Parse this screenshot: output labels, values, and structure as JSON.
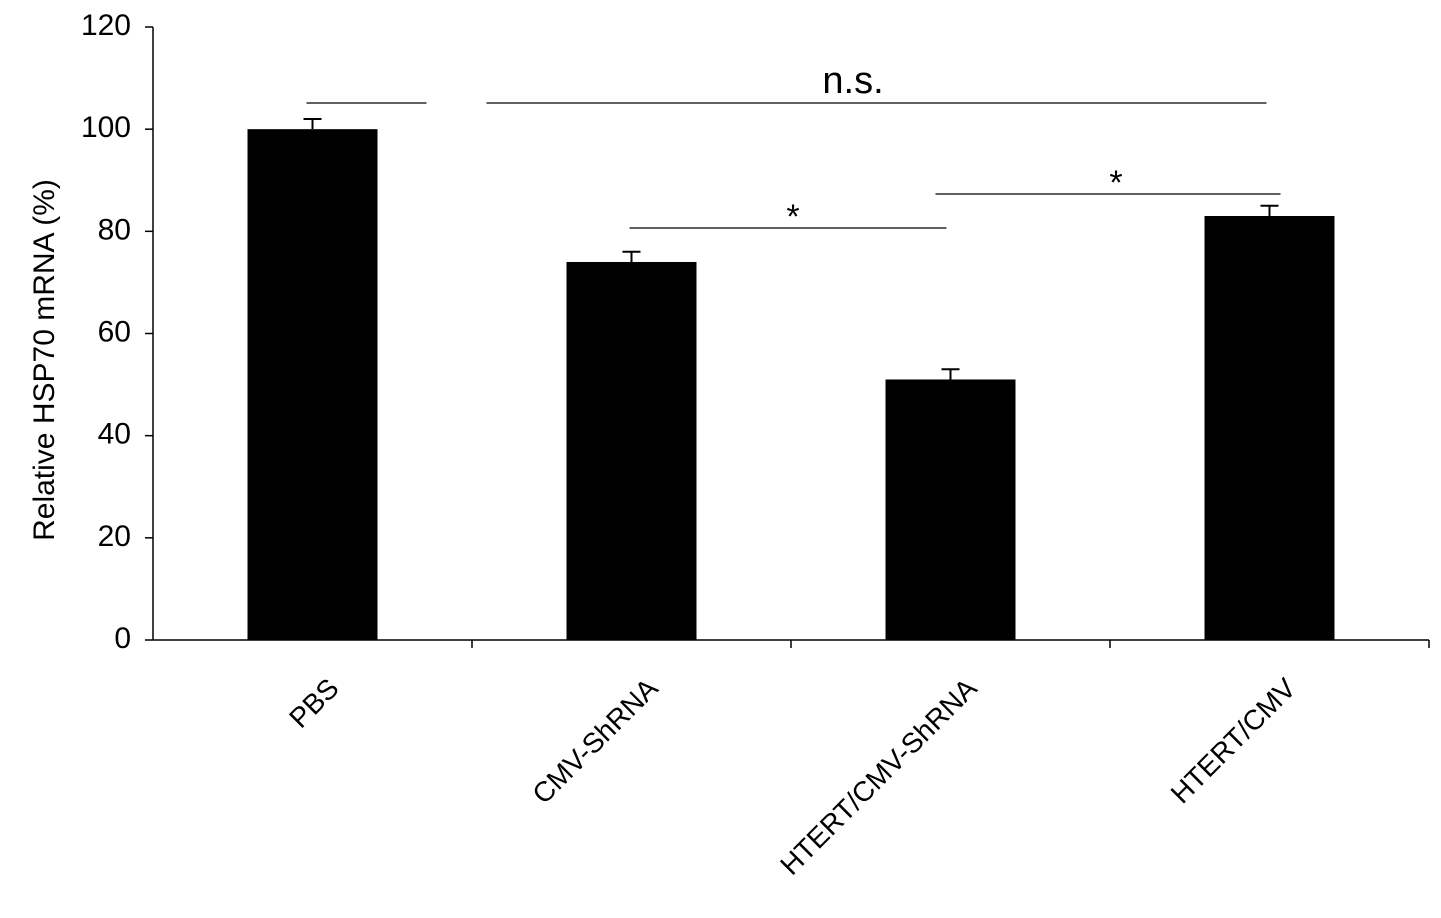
{
  "chart_data": {
    "type": "bar",
    "y_label": "Relative HSP70 mRNA (%)",
    "categories": [
      "PBS",
      "CMV-ShRNA",
      "HTERT/CMV-ShRNA",
      "HTERT/CMV"
    ],
    "values": [
      100,
      74,
      51,
      83
    ],
    "errors": [
      2,
      2,
      2,
      2
    ],
    "color": "#000000",
    "ylim": [
      0,
      120
    ],
    "yticks": [
      0,
      20,
      40,
      60,
      80,
      100,
      120
    ],
    "grid": false,
    "annotations": [
      "n.s.",
      "*",
      "*"
    ]
  }
}
